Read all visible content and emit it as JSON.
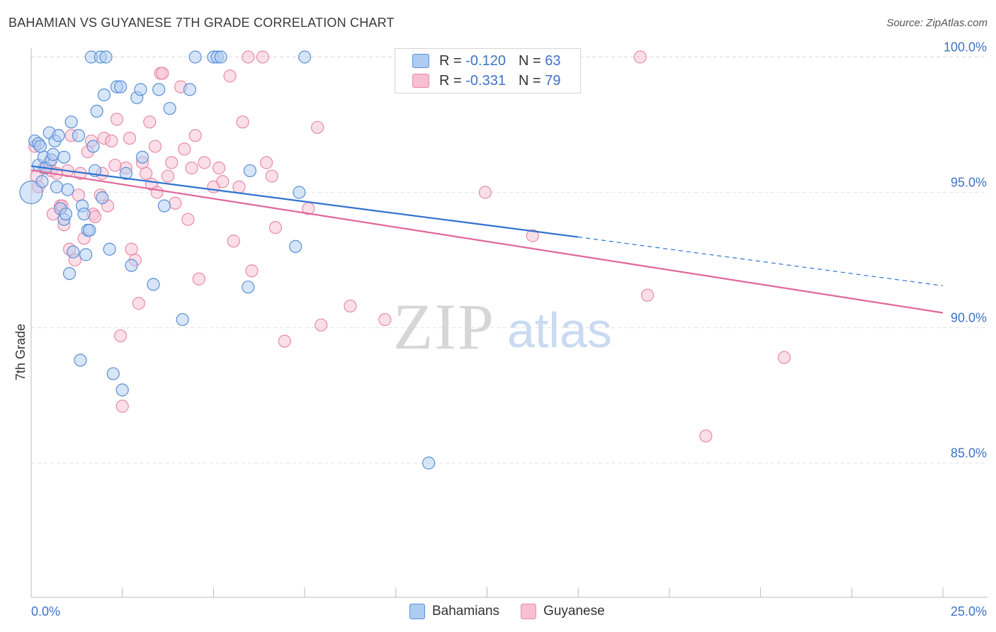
{
  "header": {
    "title": "BAHAMIAN VS GUYANESE 7TH GRADE CORRELATION CHART",
    "source": "Source: ZipAtlas.com"
  },
  "legend": {
    "rows": [
      {
        "r_label": "R =",
        "r_value": "-0.120",
        "n_label": "N =",
        "n_value": "63"
      },
      {
        "r_label": "R =",
        "r_value": "-0.331",
        "n_label": "N =",
        "n_value": "79"
      }
    ],
    "series_names": [
      "Bahamians",
      "Guyanese"
    ]
  },
  "colors": {
    "blue_fill": "#aecbf2",
    "blue_stroke": "#5b8fd6",
    "blue_line": "#2f72d0",
    "pink_fill": "#f7bfd1",
    "pink_stroke": "#e88aa8",
    "pink_line": "#e0679a",
    "tick_text": "#3f72c4",
    "grid": "#e3e3e3"
  },
  "watermark": {
    "zip": "ZIP",
    "atlas": "atlas"
  },
  "chart_data": {
    "type": "scatter",
    "title": "BAHAMIAN VS GUYANESE 7TH GRADE CORRELATION CHART",
    "xlabel": "",
    "ylabel": "7th Grade",
    "xlim": [
      0,
      25
    ],
    "ylim": [
      80.5,
      100.7
    ],
    "x_tick_labels": [
      "0.0%",
      "25.0%"
    ],
    "y_ticks": [
      85,
      90,
      95,
      100
    ],
    "y_tick_labels": [
      "85.0%",
      "90.0%",
      "95.0%",
      "100.0%"
    ],
    "grid": true,
    "legend_position": "top-center",
    "series": [
      {
        "name": "Bahamians",
        "R": -0.12,
        "N": 63,
        "trend": {
          "x_start": 0,
          "y_start": 95.97,
          "x_solid_end": 15.0,
          "y_solid_end": 93.35,
          "x_end": 25.0,
          "y_end": 91.55
        },
        "points": [
          [
            0.0,
            95.0
          ],
          [
            0.1,
            96.9
          ],
          [
            0.2,
            96.0
          ],
          [
            0.2,
            96.8
          ],
          [
            0.3,
            95.4
          ],
          [
            0.35,
            96.3
          ],
          [
            0.4,
            95.9
          ],
          [
            0.5,
            97.2
          ],
          [
            0.55,
            96.2
          ],
          [
            0.6,
            96.4
          ],
          [
            0.65,
            96.9
          ],
          [
            0.7,
            95.2
          ],
          [
            0.75,
            97.1
          ],
          [
            0.8,
            94.4
          ],
          [
            0.9,
            94.0
          ],
          [
            0.9,
            96.3
          ],
          [
            0.95,
            94.2
          ],
          [
            1.0,
            95.1
          ],
          [
            1.05,
            92.0
          ],
          [
            1.1,
            97.6
          ],
          [
            1.15,
            92.8
          ],
          [
            1.3,
            97.1
          ],
          [
            1.35,
            88.8
          ],
          [
            1.4,
            94.5
          ],
          [
            1.45,
            94.2
          ],
          [
            1.5,
            92.7
          ],
          [
            1.55,
            93.6
          ],
          [
            1.6,
            93.6
          ],
          [
            1.65,
            100.0
          ],
          [
            1.7,
            96.7
          ],
          [
            1.75,
            95.8
          ],
          [
            1.8,
            98.0
          ],
          [
            1.9,
            100.0
          ],
          [
            1.95,
            94.8
          ],
          [
            2.0,
            98.6
          ],
          [
            2.05,
            100.0
          ],
          [
            2.15,
            92.9
          ],
          [
            2.25,
            88.3
          ],
          [
            2.35,
            98.9
          ],
          [
            2.45,
            98.9
          ],
          [
            2.5,
            87.7
          ],
          [
            2.6,
            95.7
          ],
          [
            2.75,
            92.3
          ],
          [
            2.9,
            98.5
          ],
          [
            3.0,
            98.8
          ],
          [
            3.05,
            96.3
          ],
          [
            3.35,
            91.6
          ],
          [
            3.5,
            98.8
          ],
          [
            3.65,
            94.5
          ],
          [
            3.8,
            98.1
          ],
          [
            4.15,
            90.3
          ],
          [
            4.35,
            98.8
          ],
          [
            4.5,
            100.0
          ],
          [
            5.0,
            100.0
          ],
          [
            5.1,
            100.0
          ],
          [
            5.2,
            100.0
          ],
          [
            5.95,
            91.5
          ],
          [
            6.0,
            95.8
          ],
          [
            7.25,
            93.0
          ],
          [
            7.35,
            95.0
          ],
          [
            7.5,
            100.0
          ],
          [
            10.9,
            85.0
          ],
          [
            0.25,
            96.7
          ]
        ]
      },
      {
        "name": "Guyanese",
        "R": -0.331,
        "N": 79,
        "trend": {
          "x_start": 0,
          "y_start": 95.82,
          "x_end": 25.0,
          "y_end": 90.55
        },
        "points": [
          [
            0.1,
            96.7
          ],
          [
            0.15,
            95.6
          ],
          [
            0.2,
            95.2
          ],
          [
            0.35,
            95.9
          ],
          [
            0.5,
            96.1
          ],
          [
            0.55,
            95.8
          ],
          [
            0.6,
            94.2
          ],
          [
            0.7,
            95.7
          ],
          [
            0.8,
            94.5
          ],
          [
            0.85,
            94.5
          ],
          [
            0.9,
            93.8
          ],
          [
            1.0,
            95.8
          ],
          [
            1.05,
            92.9
          ],
          [
            1.1,
            97.1
          ],
          [
            1.2,
            92.5
          ],
          [
            1.3,
            94.9
          ],
          [
            1.35,
            95.7
          ],
          [
            1.45,
            93.3
          ],
          [
            1.55,
            96.5
          ],
          [
            1.65,
            96.9
          ],
          [
            1.7,
            94.2
          ],
          [
            1.75,
            94.1
          ],
          [
            1.9,
            94.9
          ],
          [
            1.95,
            95.7
          ],
          [
            2.0,
            97.0
          ],
          [
            2.1,
            94.5
          ],
          [
            2.2,
            96.9
          ],
          [
            2.3,
            96.0
          ],
          [
            2.35,
            97.7
          ],
          [
            2.45,
            89.7
          ],
          [
            2.5,
            87.1
          ],
          [
            2.6,
            95.9
          ],
          [
            2.7,
            97.0
          ],
          [
            2.75,
            92.9
          ],
          [
            2.85,
            92.5
          ],
          [
            2.95,
            90.9
          ],
          [
            3.05,
            96.1
          ],
          [
            3.15,
            95.7
          ],
          [
            3.25,
            97.6
          ],
          [
            3.3,
            95.3
          ],
          [
            3.4,
            96.7
          ],
          [
            3.45,
            95.0
          ],
          [
            3.55,
            99.4
          ],
          [
            3.6,
            99.4
          ],
          [
            3.75,
            95.6
          ],
          [
            3.85,
            96.1
          ],
          [
            3.95,
            94.6
          ],
          [
            4.1,
            98.9
          ],
          [
            4.2,
            96.6
          ],
          [
            4.3,
            94.0
          ],
          [
            4.4,
            95.9
          ],
          [
            4.5,
            97.1
          ],
          [
            4.6,
            91.8
          ],
          [
            4.75,
            96.1
          ],
          [
            5.0,
            95.2
          ],
          [
            5.15,
            95.9
          ],
          [
            5.25,
            95.4
          ],
          [
            5.45,
            99.3
          ],
          [
            5.55,
            93.2
          ],
          [
            5.7,
            95.2
          ],
          [
            5.8,
            97.6
          ],
          [
            5.95,
            100.0
          ],
          [
            6.05,
            92.1
          ],
          [
            6.35,
            100.0
          ],
          [
            6.45,
            96.1
          ],
          [
            6.6,
            95.6
          ],
          [
            6.7,
            93.7
          ],
          [
            6.95,
            89.5
          ],
          [
            7.6,
            94.4
          ],
          [
            7.85,
            97.4
          ],
          [
            7.95,
            90.1
          ],
          [
            8.75,
            90.8
          ],
          [
            9.7,
            90.3
          ],
          [
            12.45,
            95.0
          ],
          [
            13.75,
            93.4
          ],
          [
            16.7,
            100.0
          ],
          [
            16.9,
            91.2
          ],
          [
            18.5,
            86.0
          ],
          [
            20.65,
            88.9
          ]
        ]
      }
    ]
  }
}
